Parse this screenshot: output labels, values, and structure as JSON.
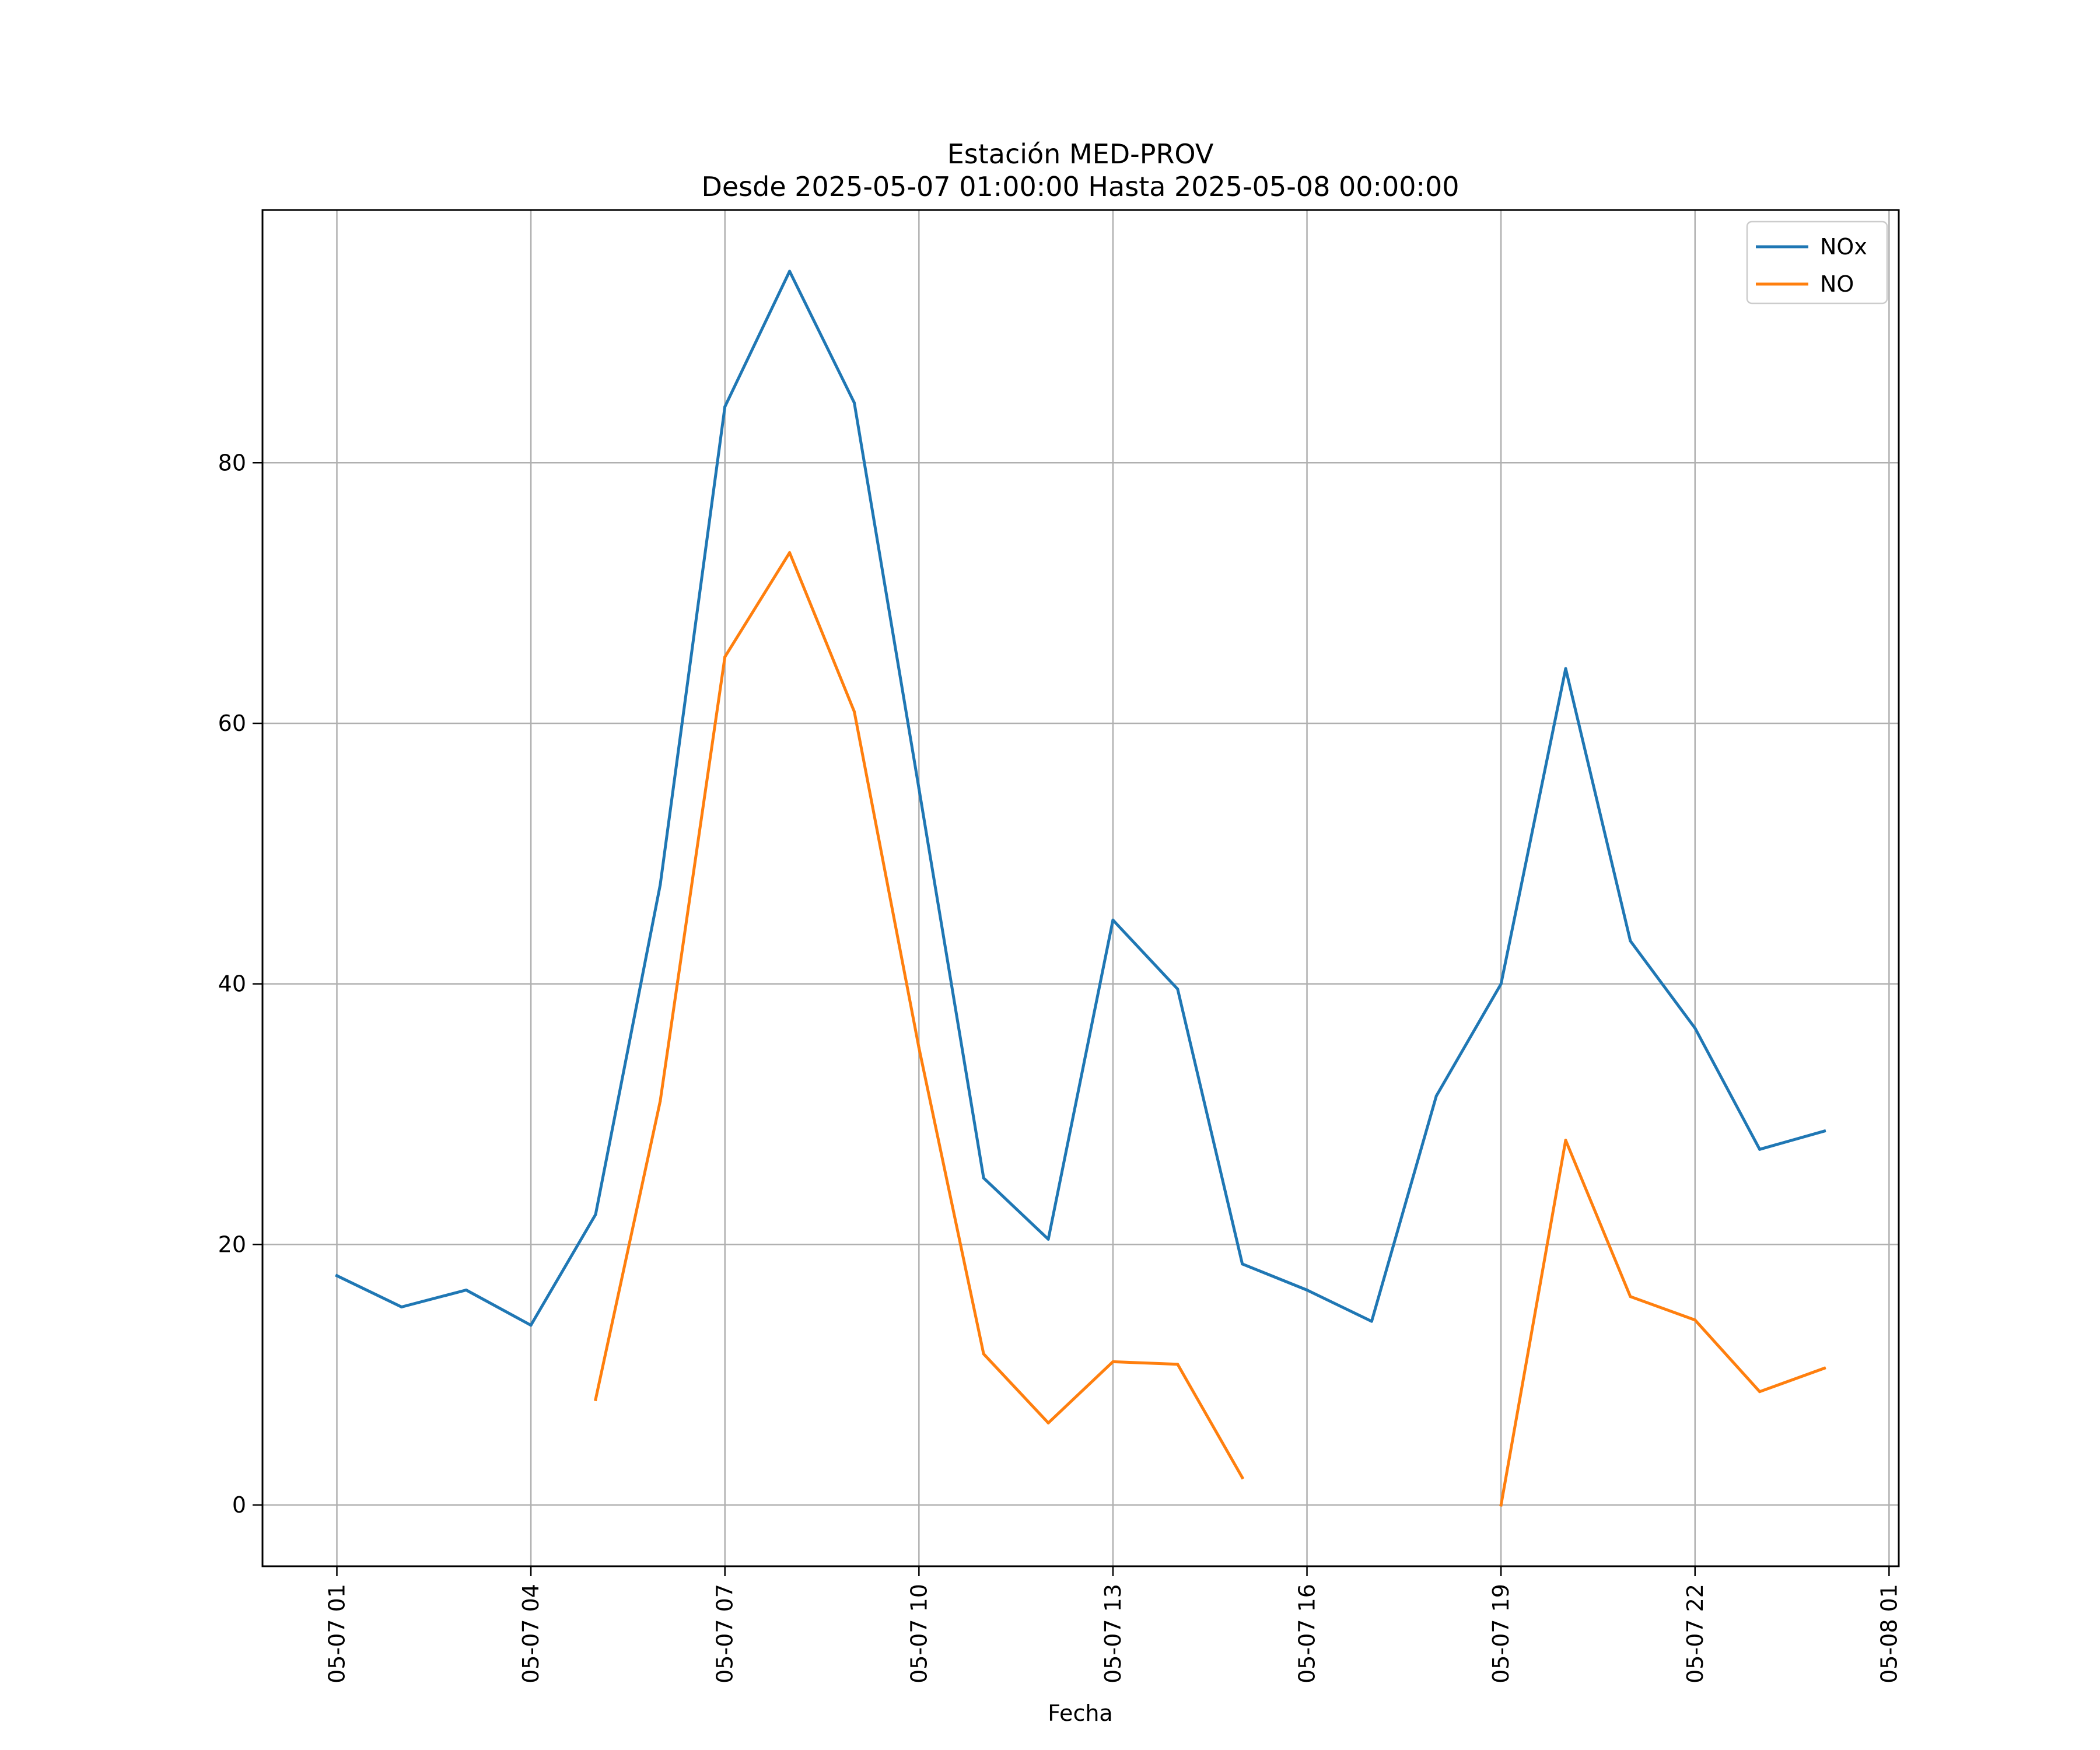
{
  "chart_data": {
    "type": "line",
    "title": "Estación MED-PROV",
    "subtitle": "Desde 2025-05-07 01:00:00 Hasta 2025-05-08 00:00:00",
    "xlabel": "Fecha",
    "ylabel": "",
    "x": [
      "2025-05-07 01:00",
      "2025-05-07 02:00",
      "2025-05-07 03:00",
      "2025-05-07 04:00",
      "2025-05-07 05:00",
      "2025-05-07 06:00",
      "2025-05-07 07:00",
      "2025-05-07 08:00",
      "2025-05-07 09:00",
      "2025-05-07 10:00",
      "2025-05-07 11:00",
      "2025-05-07 12:00",
      "2025-05-07 13:00",
      "2025-05-07 14:00",
      "2025-05-07 15:00",
      "2025-05-07 16:00",
      "2025-05-07 17:00",
      "2025-05-07 18:00",
      "2025-05-07 19:00",
      "2025-05-07 20:00",
      "2025-05-07 21:00",
      "2025-05-07 22:00",
      "2025-05-07 23:00",
      "2025-05-08 00:00"
    ],
    "series": [
      {
        "name": "NOx",
        "color": "#1f77b4",
        "values": [
          17.6,
          15.2,
          16.5,
          13.8,
          22.3,
          47.6,
          84.3,
          94.7,
          84.6,
          55.0,
          25.1,
          20.4,
          44.9,
          39.6,
          18.5,
          16.5,
          14.1,
          31.4,
          40.0,
          64.2,
          43.3,
          36.6,
          27.3,
          28.7
        ]
      },
      {
        "name": "NO",
        "color": "#ff7f0e",
        "values": [
          null,
          null,
          null,
          null,
          8.1,
          31.0,
          65.1,
          73.1,
          60.9,
          35.1,
          11.6,
          6.3,
          11.0,
          10.8,
          2.1,
          null,
          null,
          null,
          0.0,
          28.0,
          16.0,
          14.2,
          8.7,
          10.5
        ]
      }
    ],
    "xticks": [
      "05-07 01",
      "05-07 04",
      "05-07 07",
      "05-07 10",
      "05-07 13",
      "05-07 16",
      "05-07 19",
      "05-07 22",
      "05-08 01"
    ],
    "yticks": [
      "0",
      "20",
      "40",
      "60",
      "80"
    ],
    "xlim": [
      "2025-05-06 23:51",
      "2025-05-08 01:09"
    ],
    "ylim": [
      -4.7,
      99.4
    ],
    "grid": true,
    "legend_position": "top-right"
  }
}
